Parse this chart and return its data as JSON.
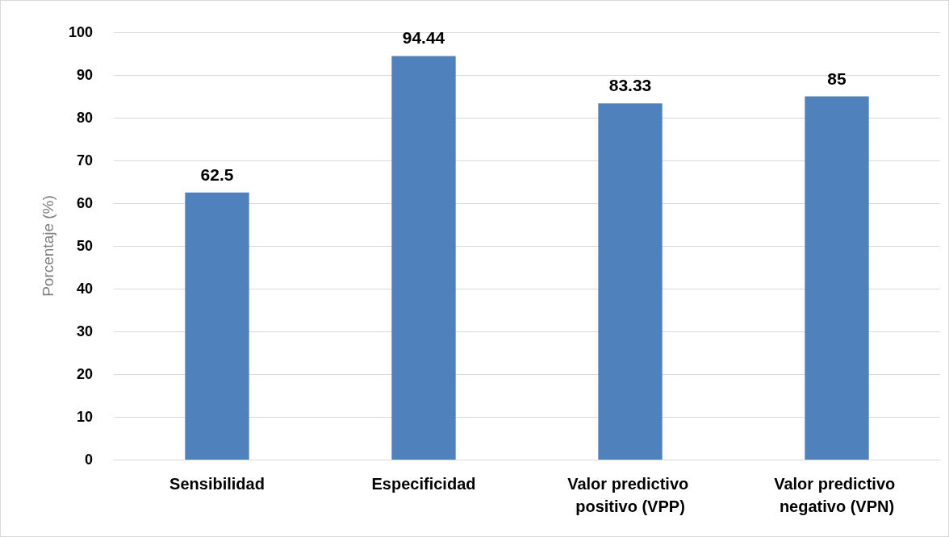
{
  "chart_data": {
    "type": "bar",
    "ylabel": "Porcentaje (%)",
    "categories": [
      "Sensibilidad",
      "Especificidad",
      "Valor predictivo positivo (VPP)",
      "Valor predictivo negativo (VPN)"
    ],
    "values": [
      62.5,
      94.44,
      83.33,
      85
    ],
    "color": "#4f81bd",
    "ylim": [
      0,
      100
    ],
    "yticks": [
      0,
      10,
      20,
      30,
      40,
      50,
      60,
      70,
      80,
      90,
      100
    ],
    "grid": "y",
    "data_labels": true
  }
}
